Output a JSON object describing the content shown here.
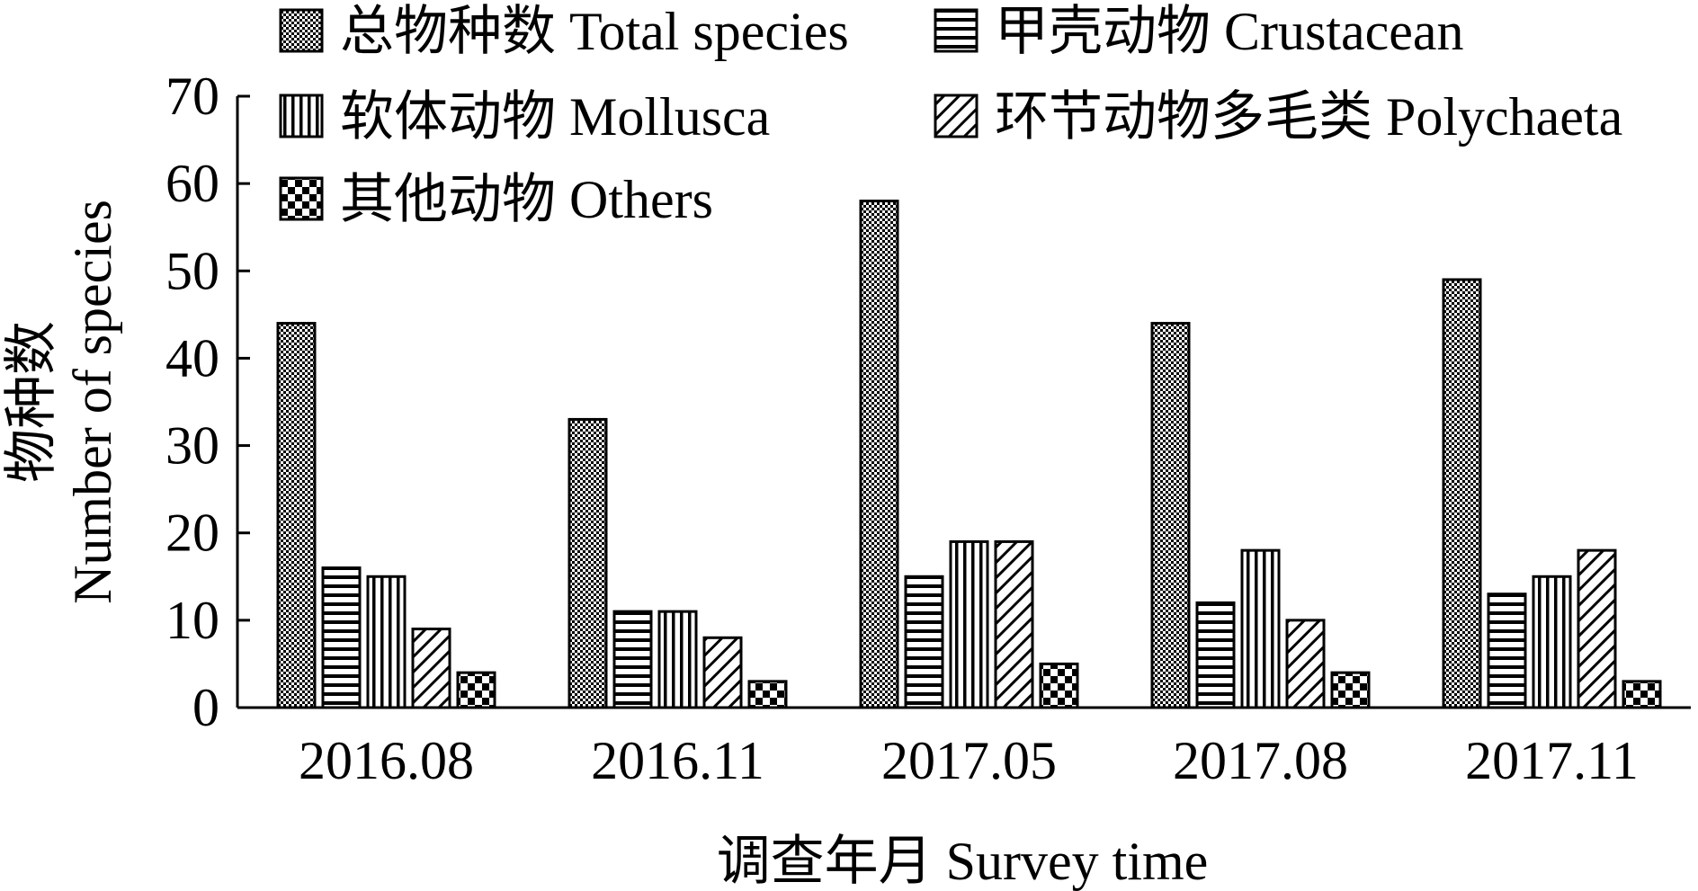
{
  "chart_data": {
    "type": "bar",
    "xlabel": "调查年月 Survey time",
    "ylabel_cn": "物种数",
    "ylabel_en": "Number of species",
    "ylim": [
      0,
      70
    ],
    "yticks": [
      0,
      10,
      20,
      30,
      40,
      50,
      60,
      70
    ],
    "categories": [
      "2016.08",
      "2016.11",
      "2017.05",
      "2017.08",
      "2017.11"
    ],
    "series": [
      {
        "name": "总物种数 Total species",
        "pattern": "grid",
        "values": [
          44,
          33,
          58,
          44,
          49
        ]
      },
      {
        "name": "甲壳动物 Crustacean",
        "pattern": "hlines",
        "values": [
          16,
          11,
          15,
          12,
          13
        ]
      },
      {
        "name": "软体动物 Mollusca",
        "pattern": "vlines",
        "values": [
          15,
          11,
          19,
          18,
          15
        ]
      },
      {
        "name": "环节动物多毛类 Polychaeta",
        "pattern": "diag",
        "values": [
          9,
          8,
          19,
          10,
          18
        ]
      },
      {
        "name": "其他动物 Others",
        "pattern": "checker",
        "values": [
          4,
          3,
          5,
          4,
          3
        ]
      }
    ],
    "legend": "top",
    "grid": false,
    "colors": {
      "ink": "#000000",
      "background": "#ffffff"
    }
  }
}
